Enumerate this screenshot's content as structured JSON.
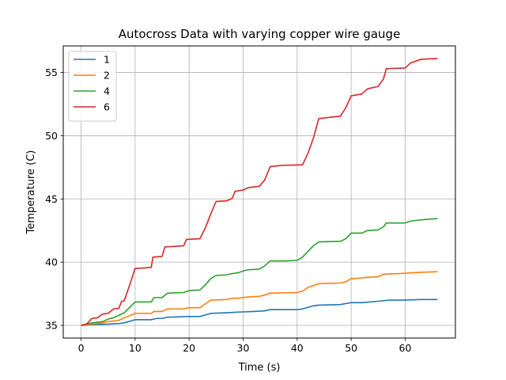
{
  "chart_data": {
    "type": "line",
    "title": "Autocross Data with varying copper wire gauge",
    "xlabel": "Time (s)",
    "ylabel": "Temperature (C)",
    "xlim": [
      -3.3,
      69.3
    ],
    "ylim": [
      34.0,
      57.1
    ],
    "xticks": [
      0,
      10,
      20,
      30,
      40,
      50,
      60
    ],
    "yticks": [
      35,
      40,
      45,
      50,
      55
    ],
    "grid": true,
    "legend_position": "top-left",
    "series": [
      {
        "name": "1",
        "color": "#1f77b4",
        "points": [
          [
            0,
            35.0
          ],
          [
            2,
            35.05
          ],
          [
            5,
            35.1
          ],
          [
            7,
            35.15
          ],
          [
            8,
            35.2
          ],
          [
            10,
            35.45
          ],
          [
            13,
            35.45
          ],
          [
            14,
            35.55
          ],
          [
            15,
            35.55
          ],
          [
            16,
            35.65
          ],
          [
            20,
            35.7
          ],
          [
            22,
            35.7
          ],
          [
            24,
            35.95
          ],
          [
            27,
            36.0
          ],
          [
            29,
            36.05
          ],
          [
            32,
            36.1
          ],
          [
            34,
            36.15
          ],
          [
            35,
            36.25
          ],
          [
            40,
            36.25
          ],
          [
            41,
            36.3
          ],
          [
            43,
            36.55
          ],
          [
            44,
            36.6
          ],
          [
            48,
            36.65
          ],
          [
            50,
            36.8
          ],
          [
            52,
            36.8
          ],
          [
            56,
            36.95
          ],
          [
            57,
            37.0
          ],
          [
            60,
            37.0
          ],
          [
            63,
            37.05
          ],
          [
            66,
            37.05
          ]
        ]
      },
      {
        "name": "2",
        "color": "#ff7f0e",
        "points": [
          [
            0,
            35.0
          ],
          [
            2,
            35.1
          ],
          [
            4,
            35.2
          ],
          [
            5,
            35.3
          ],
          [
            7,
            35.4
          ],
          [
            8,
            35.6
          ],
          [
            10,
            35.95
          ],
          [
            13,
            35.95
          ],
          [
            13.5,
            36.1
          ],
          [
            15,
            36.1
          ],
          [
            16,
            36.3
          ],
          [
            19,
            36.3
          ],
          [
            20,
            36.4
          ],
          [
            22,
            36.4
          ],
          [
            23,
            36.7
          ],
          [
            24,
            37.0
          ],
          [
            27,
            37.05
          ],
          [
            28,
            37.15
          ],
          [
            29,
            37.15
          ],
          [
            31,
            37.25
          ],
          [
            33,
            37.3
          ],
          [
            34,
            37.4
          ],
          [
            35,
            37.55
          ],
          [
            40,
            37.6
          ],
          [
            41,
            37.7
          ],
          [
            42,
            38.0
          ],
          [
            44,
            38.3
          ],
          [
            48,
            38.35
          ],
          [
            49,
            38.45
          ],
          [
            50,
            38.7
          ],
          [
            52,
            38.75
          ],
          [
            53,
            38.8
          ],
          [
            55,
            38.85
          ],
          [
            56,
            39.05
          ],
          [
            59,
            39.1
          ],
          [
            61,
            39.15
          ],
          [
            63,
            39.2
          ],
          [
            66,
            39.25
          ]
        ]
      },
      {
        "name": "4",
        "color": "#2ca02c",
        "points": [
          [
            0,
            35.0
          ],
          [
            1,
            35.1
          ],
          [
            2,
            35.2
          ],
          [
            4,
            35.3
          ],
          [
            5,
            35.5
          ],
          [
            6,
            35.6
          ],
          [
            7,
            35.8
          ],
          [
            8,
            36.0
          ],
          [
            10,
            36.85
          ],
          [
            13,
            36.85
          ],
          [
            13.5,
            37.2
          ],
          [
            15,
            37.2
          ],
          [
            16,
            37.55
          ],
          [
            19,
            37.6
          ],
          [
            20,
            37.75
          ],
          [
            22,
            37.8
          ],
          [
            23,
            38.2
          ],
          [
            24,
            38.7
          ],
          [
            25,
            38.95
          ],
          [
            27,
            39.0
          ],
          [
            28,
            39.1
          ],
          [
            29,
            39.15
          ],
          [
            30,
            39.3
          ],
          [
            31,
            39.4
          ],
          [
            33,
            39.45
          ],
          [
            34,
            39.7
          ],
          [
            35,
            40.1
          ],
          [
            38,
            40.1
          ],
          [
            40,
            40.15
          ],
          [
            41,
            40.4
          ],
          [
            42,
            40.85
          ],
          [
            43,
            41.3
          ],
          [
            44,
            41.6
          ],
          [
            48,
            41.65
          ],
          [
            49,
            41.85
          ],
          [
            50,
            42.3
          ],
          [
            52,
            42.3
          ],
          [
            53,
            42.5
          ],
          [
            55,
            42.55
          ],
          [
            56,
            42.8
          ],
          [
            56.5,
            43.1
          ],
          [
            60,
            43.1
          ],
          [
            61,
            43.25
          ],
          [
            63,
            43.35
          ],
          [
            66,
            43.45
          ]
        ]
      },
      {
        "name": "6",
        "color": "#d62728",
        "points": [
          [
            0,
            35.0
          ],
          [
            1,
            35.1
          ],
          [
            2,
            35.55
          ],
          [
            3,
            35.6
          ],
          [
            4,
            35.9
          ],
          [
            5,
            35.95
          ],
          [
            6,
            36.3
          ],
          [
            7,
            36.35
          ],
          [
            7.5,
            36.9
          ],
          [
            8,
            36.95
          ],
          [
            9,
            38.2
          ],
          [
            10,
            39.5
          ],
          [
            12,
            39.55
          ],
          [
            13,
            39.6
          ],
          [
            13.3,
            40.4
          ],
          [
            15,
            40.45
          ],
          [
            15.5,
            41.2
          ],
          [
            19,
            41.3
          ],
          [
            19.5,
            41.8
          ],
          [
            22,
            41.85
          ],
          [
            23,
            42.7
          ],
          [
            24,
            43.8
          ],
          [
            25,
            44.8
          ],
          [
            27,
            44.85
          ],
          [
            28,
            45.05
          ],
          [
            28.5,
            45.6
          ],
          [
            30,
            45.7
          ],
          [
            31,
            45.9
          ],
          [
            33,
            46.0
          ],
          [
            34,
            46.5
          ],
          [
            35,
            47.55
          ],
          [
            37,
            47.65
          ],
          [
            41,
            47.7
          ],
          [
            42,
            48.6
          ],
          [
            43,
            49.8
          ],
          [
            44,
            51.35
          ],
          [
            48,
            51.55
          ],
          [
            49,
            52.2
          ],
          [
            50,
            53.15
          ],
          [
            52,
            53.3
          ],
          [
            53,
            53.7
          ],
          [
            55,
            53.9
          ],
          [
            56,
            54.5
          ],
          [
            56.5,
            55.3
          ],
          [
            60,
            55.35
          ],
          [
            61,
            55.75
          ],
          [
            63,
            56.05
          ],
          [
            66,
            56.1
          ]
        ]
      }
    ]
  }
}
